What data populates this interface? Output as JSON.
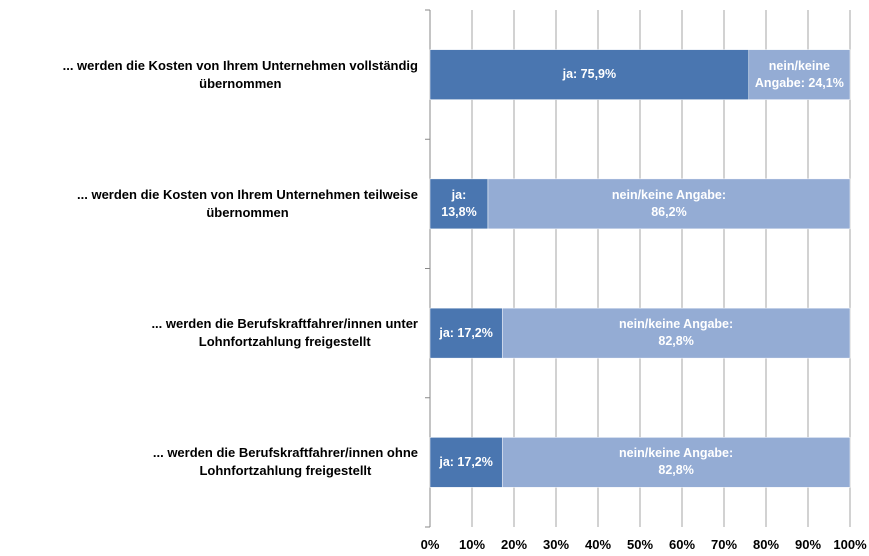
{
  "chart_data": {
    "type": "stacked-bar-horizontal",
    "categories": [
      "... werden die Kosten von Ihrem Unternehmen vollständig\nübernommen",
      "... werden die Kosten von Ihrem Unternehmen teilweise\nübernommen",
      "... werden die Berufskraftfahrer/innen unter\nLohnfortzahlung freigestellt",
      "... werden die Berufskraftfahrer/innen ohne\nLohnfortzahlung freigestellt"
    ],
    "series": [
      {
        "name": "ja",
        "color": "#4a76b0",
        "values": [
          75.9,
          13.8,
          17.2,
          17.2
        ],
        "value_labels": [
          "ja: 75,9%",
          "ja:\n13,8%",
          "ja: 17,2%",
          "ja: 17,2%"
        ]
      },
      {
        "name": "nein/keine Angabe",
        "color": "#94acd4",
        "values": [
          24.1,
          86.2,
          82.8,
          82.8
        ],
        "value_labels": [
          "nein/keine\nAngabe: 24,1%",
          "nein/keine Angabe:\n86,2%",
          "nein/keine Angabe:\n82,8%",
          "nein/keine Angabe:\n82,8%"
        ]
      }
    ],
    "xlim": [
      0,
      100
    ],
    "xticks": [
      {
        "value": 0,
        "label": "0%"
      },
      {
        "value": 10,
        "label": "10%"
      },
      {
        "value": 20,
        "label": "20%"
      },
      {
        "value": 30,
        "label": "30%"
      },
      {
        "value": 40,
        "label": "40%"
      },
      {
        "value": 50,
        "label": "50%"
      },
      {
        "value": 60,
        "label": "60%"
      },
      {
        "value": 70,
        "label": "70%"
      },
      {
        "value": 80,
        "label": "80%"
      },
      {
        "value": 90,
        "label": "90%"
      },
      {
        "value": 100,
        "label": "100%"
      }
    ],
    "grid": true
  }
}
